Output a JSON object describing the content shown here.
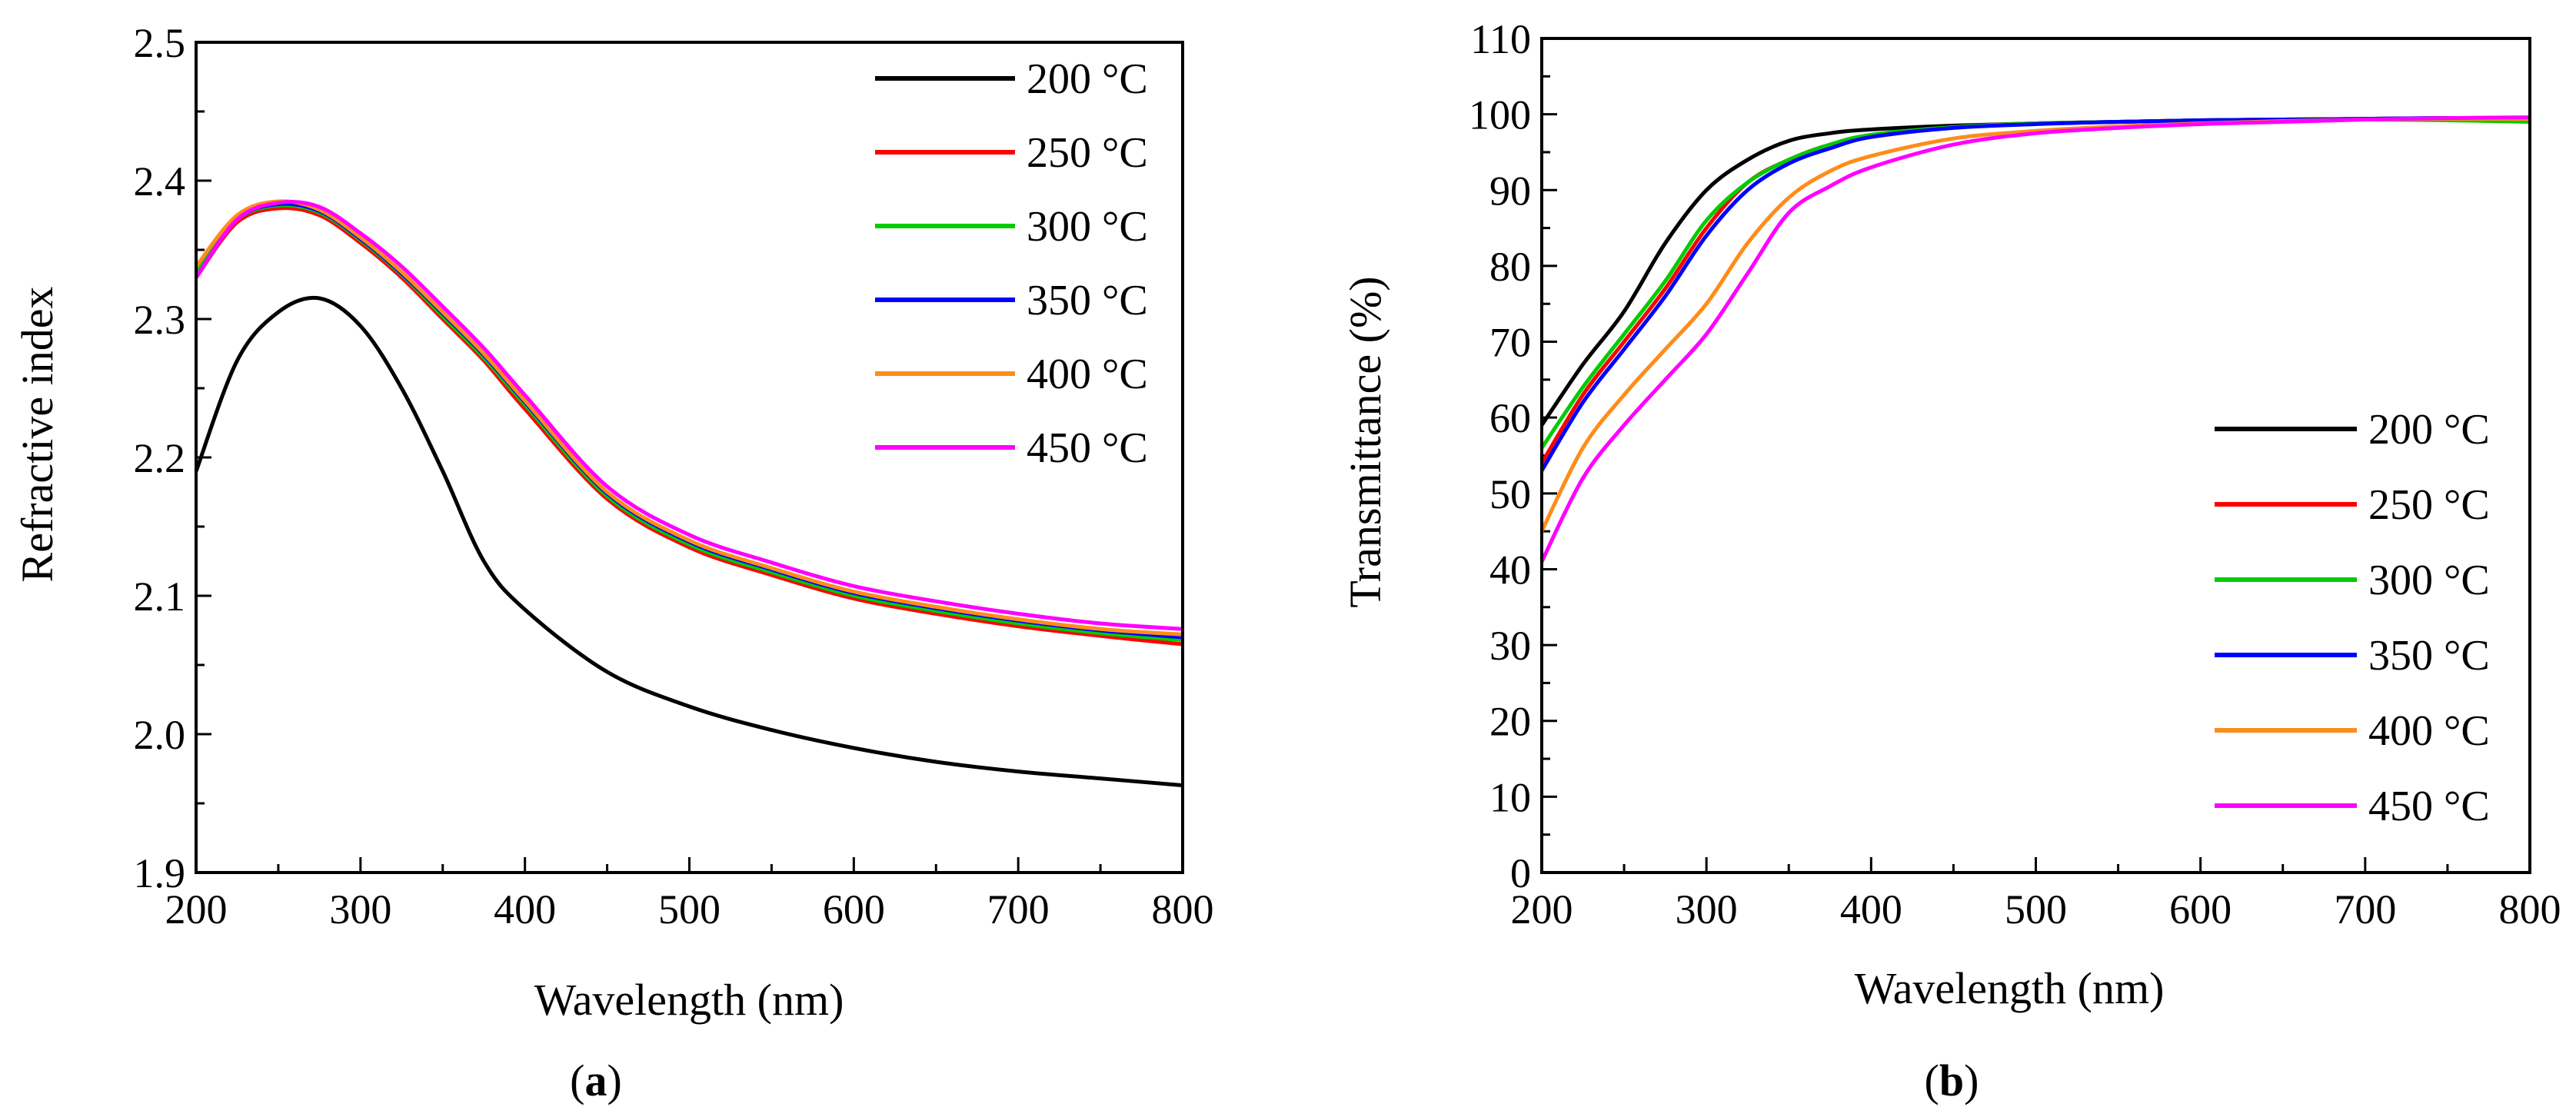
{
  "chart_data": [
    {
      "panel": "a",
      "type": "line",
      "caption_letter": "a",
      "title": "",
      "xlabel": "Wavelength (nm)",
      "ylabel": "Refractive index",
      "xlim": [
        200,
        800
      ],
      "ylim": [
        1.9,
        2.5
      ],
      "xticks": [
        200,
        300,
        400,
        500,
        600,
        700,
        800
      ],
      "yticks": [
        1.9,
        2.0,
        2.1,
        2.2,
        2.3,
        2.4,
        2.5
      ],
      "ytick_labels": [
        "1.9",
        "2.0",
        "2.1",
        "2.2",
        "2.3",
        "2.4",
        "2.5"
      ],
      "legend_position": "top-right",
      "x": [
        200,
        225,
        250,
        275,
        300,
        325,
        350,
        375,
        400,
        450,
        500,
        550,
        600,
        650,
        700,
        750,
        800
      ],
      "series": [
        {
          "name": "200 °C",
          "color": "#000000",
          "values": [
            2.19,
            2.27,
            2.305,
            2.315,
            2.295,
            2.25,
            2.19,
            2.125,
            2.09,
            2.045,
            2.02,
            2.003,
            1.99,
            1.98,
            1.973,
            1.968,
            1.963
          ]
        },
        {
          "name": "250 °C",
          "color": "#ff0000",
          "values": [
            2.33,
            2.37,
            2.38,
            2.375,
            2.355,
            2.33,
            2.3,
            2.27,
            2.235,
            2.17,
            2.135,
            2.115,
            2.098,
            2.087,
            2.078,
            2.071,
            2.065
          ]
        },
        {
          "name": "300 °C",
          "color": "#00cc00",
          "values": [
            2.335,
            2.372,
            2.382,
            2.377,
            2.357,
            2.332,
            2.302,
            2.272,
            2.238,
            2.172,
            2.137,
            2.117,
            2.1,
            2.089,
            2.08,
            2.073,
            2.068
          ]
        },
        {
          "name": "350 °C",
          "color": "#0000ff",
          "values": [
            2.33,
            2.372,
            2.383,
            2.378,
            2.358,
            2.333,
            2.304,
            2.274,
            2.24,
            2.174,
            2.139,
            2.119,
            2.102,
            2.091,
            2.082,
            2.075,
            2.07
          ]
        },
        {
          "name": "400 °C",
          "color": "#ff8c1a",
          "values": [
            2.338,
            2.375,
            2.385,
            2.379,
            2.359,
            2.334,
            2.305,
            2.275,
            2.241,
            2.175,
            2.14,
            2.12,
            2.103,
            2.092,
            2.083,
            2.076,
            2.072
          ]
        },
        {
          "name": "450 °C",
          "color": "#ff00ff",
          "values": [
            2.33,
            2.372,
            2.384,
            2.381,
            2.362,
            2.338,
            2.309,
            2.279,
            2.245,
            2.179,
            2.144,
            2.124,
            2.107,
            2.096,
            2.087,
            2.08,
            2.076
          ]
        }
      ]
    },
    {
      "panel": "b",
      "type": "line",
      "caption_letter": "b",
      "title": "",
      "xlabel": "Wavelength (nm)",
      "ylabel": "Transmittance (%)",
      "xlim": [
        200,
        800
      ],
      "ylim": [
        0,
        110
      ],
      "xticks": [
        200,
        300,
        400,
        500,
        600,
        700,
        800
      ],
      "yticks": [
        0,
        10,
        20,
        30,
        40,
        50,
        60,
        70,
        80,
        90,
        100,
        110
      ],
      "ytick_labels": [
        "0",
        "10",
        "20",
        "30",
        "40",
        "50",
        "60",
        "70",
        "80",
        "90",
        "100",
        "110"
      ],
      "legend_position": "bottom-right",
      "x": [
        200,
        225,
        250,
        275,
        300,
        325,
        350,
        375,
        400,
        450,
        500,
        550,
        600,
        650,
        700,
        750,
        800
      ],
      "series": [
        {
          "name": "200 °C",
          "color": "#000000",
          "values": [
            59,
            67,
            74,
            83,
            90,
            94,
            96.5,
            97.5,
            98,
            98.5,
            98.8,
            99,
            99.2,
            99.3,
            99.4,
            99.5,
            99.5
          ]
        },
        {
          "name": "250 °C",
          "color": "#ff0000",
          "values": [
            54,
            63,
            70,
            77,
            85,
            91,
            94,
            96,
            97,
            98.3,
            98.8,
            99,
            99.2,
            99.3,
            99.4,
            99.5,
            99.5
          ]
        },
        {
          "name": "300 °C",
          "color": "#00cc00",
          "values": [
            56,
            64,
            71,
            78,
            86,
            91,
            94,
            96,
            97.3,
            98.3,
            98.8,
            99,
            99.2,
            99.3,
            99.3,
            99.2,
            99
          ]
        },
        {
          "name": "350 °C",
          "color": "#0000ff",
          "values": [
            53,
            62,
            69,
            76,
            84,
            90,
            93.5,
            95.5,
            97,
            98.2,
            98.7,
            99,
            99.2,
            99.3,
            99.4,
            99.5,
            99.4
          ]
        },
        {
          "name": "400 °C",
          "color": "#ff8c1a",
          "values": [
            45,
            56,
            63,
            69,
            75,
            83,
            89,
            92.5,
            94.5,
            96.8,
            97.8,
            98.4,
            98.8,
            99.1,
            99.3,
            99.4,
            99.4
          ]
        },
        {
          "name": "450 °C",
          "color": "#ff00ff",
          "values": [
            41,
            52,
            59,
            65,
            71,
            79,
            87,
            90.5,
            93,
            96,
            97.5,
            98.2,
            98.7,
            99,
            99.3,
            99.5,
            99.6
          ]
        }
      ]
    }
  ]
}
